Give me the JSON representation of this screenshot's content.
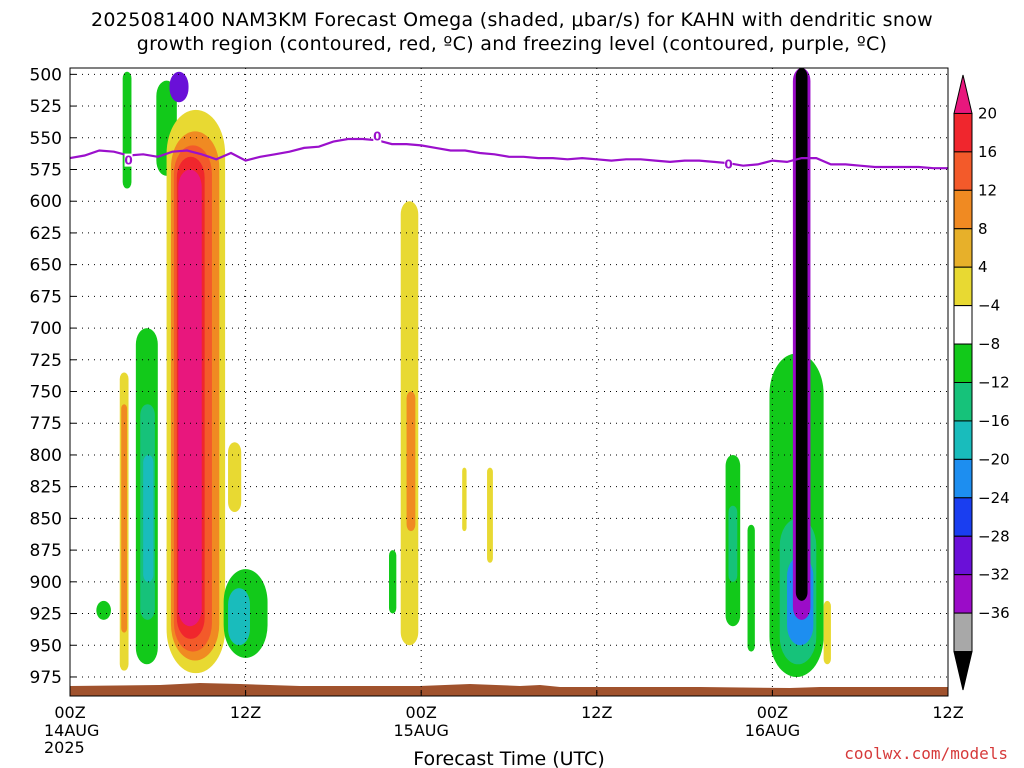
{
  "title": {
    "line1": "2025081400 NAM3KM Forecast Omega (shaded, μbar/s) for KAHN with dendritic snow",
    "line2": "growth region (contoured, red, ºC) and freezing level (contoured, purple, ºC)"
  },
  "watermark": "coolwx.com/models",
  "chart_data": {
    "type": "heatmap",
    "xlabel": "Forecast Time (UTC)",
    "ylabel": "",
    "x_ticks": [
      {
        "main": "00Z",
        "sub": [
          "14AUG",
          "2025"
        ]
      },
      {
        "main": "12Z",
        "sub": []
      },
      {
        "main": "00Z",
        "sub": [
          "15AUG"
        ]
      },
      {
        "main": "12Z",
        "sub": []
      },
      {
        "main": "00Z",
        "sub": [
          "16AUG"
        ]
      },
      {
        "main": "12Z",
        "sub": []
      }
    ],
    "x_range_hours": [
      0,
      60
    ],
    "y_ticks": [
      "500",
      "525",
      "550",
      "575",
      "600",
      "625",
      "650",
      "675",
      "700",
      "725",
      "750",
      "775",
      "800",
      "825",
      "850",
      "875",
      "900",
      "925",
      "950",
      "975"
    ],
    "y_range_hPa": [
      495,
      990
    ],
    "grid": true,
    "colorbar": {
      "labels": [
        "20",
        "16",
        "12",
        "8",
        "4",
        "−4",
        "−8",
        "−12",
        "−16",
        "−20",
        "−24",
        "−28",
        "−32",
        "−36"
      ],
      "colors": [
        "#e8177d",
        "#f0262d",
        "#f35a2a",
        "#f08a22",
        "#e7b02a",
        "#e8d932",
        "#ffffff",
        "#12c91a",
        "#16c27a",
        "#19bcbc",
        "#1d8ef0",
        "#1a3ef0",
        "#6a10d8",
        "#9b0cc8",
        "#a8a8a8",
        "#000000"
      ]
    },
    "freezing_level": {
      "label": "0",
      "x_hours": [
        0,
        1,
        2,
        3,
        4,
        5,
        6,
        7,
        8,
        9,
        10,
        11,
        12,
        13,
        14,
        15,
        16,
        17,
        18,
        19,
        20,
        21,
        22,
        23,
        24,
        25,
        26,
        27,
        28,
        29,
        30,
        31,
        32,
        33,
        34,
        35,
        36,
        37,
        38,
        39,
        40,
        41,
        42,
        43,
        44,
        45,
        46,
        47,
        48,
        49,
        50,
        51,
        52,
        53,
        54,
        55,
        56,
        57,
        58,
        59,
        60
      ],
      "p_hPa": [
        566,
        564,
        560,
        561,
        564,
        563,
        565,
        561,
        560,
        563,
        567,
        562,
        568,
        565,
        563,
        561,
        558,
        557,
        553,
        551,
        551,
        552,
        555,
        555,
        556,
        558,
        560,
        560,
        562,
        563,
        565,
        565,
        566,
        566,
        567,
        566,
        567,
        568,
        567,
        567,
        568,
        569,
        568,
        568,
        569,
        570,
        572,
        571,
        568,
        569,
        566,
        566,
        571,
        571,
        572,
        573,
        573,
        573,
        573,
        574,
        574
      ],
      "label_positions": [
        [
          4,
          568
        ],
        [
          21,
          549
        ],
        [
          45,
          571
        ]
      ]
    },
    "omega_features": [
      {
        "value": 4,
        "x_range": [
          3.4,
          4.0
        ],
        "p_range": [
          735,
          970
        ]
      },
      {
        "value": 8,
        "x_range": [
          3.5,
          3.9
        ],
        "p_range": [
          760,
          940
        ]
      },
      {
        "value": -4,
        "x_range": [
          3.6,
          4.2
        ],
        "p_range": [
          498,
          590
        ]
      },
      {
        "value": -4,
        "x_range": [
          1.8,
          2.8
        ],
        "p_range": [
          915,
          930
        ]
      },
      {
        "value": -4,
        "x_range": [
          4.5,
          6.0
        ],
        "p_range": [
          700,
          965
        ]
      },
      {
        "value": -8,
        "x_range": [
          4.8,
          5.8
        ],
        "p_range": [
          760,
          930
        ]
      },
      {
        "value": -12,
        "x_range": [
          5.0,
          5.7
        ],
        "p_range": [
          800,
          900
        ]
      },
      {
        "value": -4,
        "x_range": [
          5.9,
          7.3
        ],
        "p_range": [
          505,
          580
        ]
      },
      {
        "value": -24,
        "x_range": [
          6.8,
          8.1
        ],
        "p_range": [
          498,
          522
        ]
      },
      {
        "value": 4,
        "x_range": [
          6.6,
          10.6
        ],
        "p_range": [
          528,
          972
        ]
      },
      {
        "value": 8,
        "x_range": [
          6.9,
          10.2
        ],
        "p_range": [
          545,
          962
        ]
      },
      {
        "value": 12,
        "x_range": [
          7.1,
          9.7
        ],
        "p_range": [
          556,
          955
        ]
      },
      {
        "value": 16,
        "x_range": [
          7.3,
          9.2
        ],
        "p_range": [
          565,
          945
        ]
      },
      {
        "value": 20,
        "x_range": [
          7.4,
          9.0
        ],
        "p_range": [
          575,
          935
        ]
      },
      {
        "value": 4,
        "x_range": [
          10.8,
          11.7
        ],
        "p_range": [
          790,
          845
        ]
      },
      {
        "value": -4,
        "x_range": [
          10.5,
          13.5
        ],
        "p_range": [
          890,
          960
        ]
      },
      {
        "value": -12,
        "x_range": [
          10.8,
          12.3
        ],
        "p_range": [
          905,
          950
        ]
      },
      {
        "value": 4,
        "x_range": [
          22.6,
          23.8
        ],
        "p_range": [
          600,
          950
        ]
      },
      {
        "value": 8,
        "x_range": [
          23.0,
          23.6
        ],
        "p_range": [
          750,
          860
        ]
      },
      {
        "value": -4,
        "x_range": [
          21.8,
          22.3
        ],
        "p_range": [
          875,
          925
        ]
      },
      {
        "value": 4,
        "x_range": [
          26.8,
          27.1
        ],
        "p_range": [
          810,
          860
        ]
      },
      {
        "value": 4,
        "x_range": [
          28.5,
          28.9
        ],
        "p_range": [
          810,
          885
        ]
      },
      {
        "value": -4,
        "x_range": [
          44.8,
          45.8
        ],
        "p_range": [
          800,
          935
        ]
      },
      {
        "value": -8,
        "x_range": [
          45.0,
          45.6
        ],
        "p_range": [
          840,
          900
        ]
      },
      {
        "value": -4,
        "x_range": [
          46.3,
          46.8
        ],
        "p_range": [
          855,
          955
        ]
      },
      {
        "value": -4,
        "x_range": [
          47.8,
          51.5
        ],
        "p_range": [
          720,
          975
        ]
      },
      {
        "value": -8,
        "x_range": [
          48.5,
          51.0
        ],
        "p_range": [
          850,
          965
        ]
      },
      {
        "value": -16,
        "x_range": [
          49.0,
          50.8
        ],
        "p_range": [
          880,
          950
        ]
      },
      {
        "value": -28,
        "x_range": [
          49.4,
          50.6
        ],
        "p_range": [
          495,
          930
        ]
      },
      {
        "value": -36,
        "x_range": [
          49.6,
          50.4
        ],
        "p_range": [
          495,
          915
        ]
      },
      {
        "value": 4,
        "x_range": [
          51.5,
          52.0
        ],
        "p_range": [
          915,
          965
        ]
      }
    ]
  }
}
